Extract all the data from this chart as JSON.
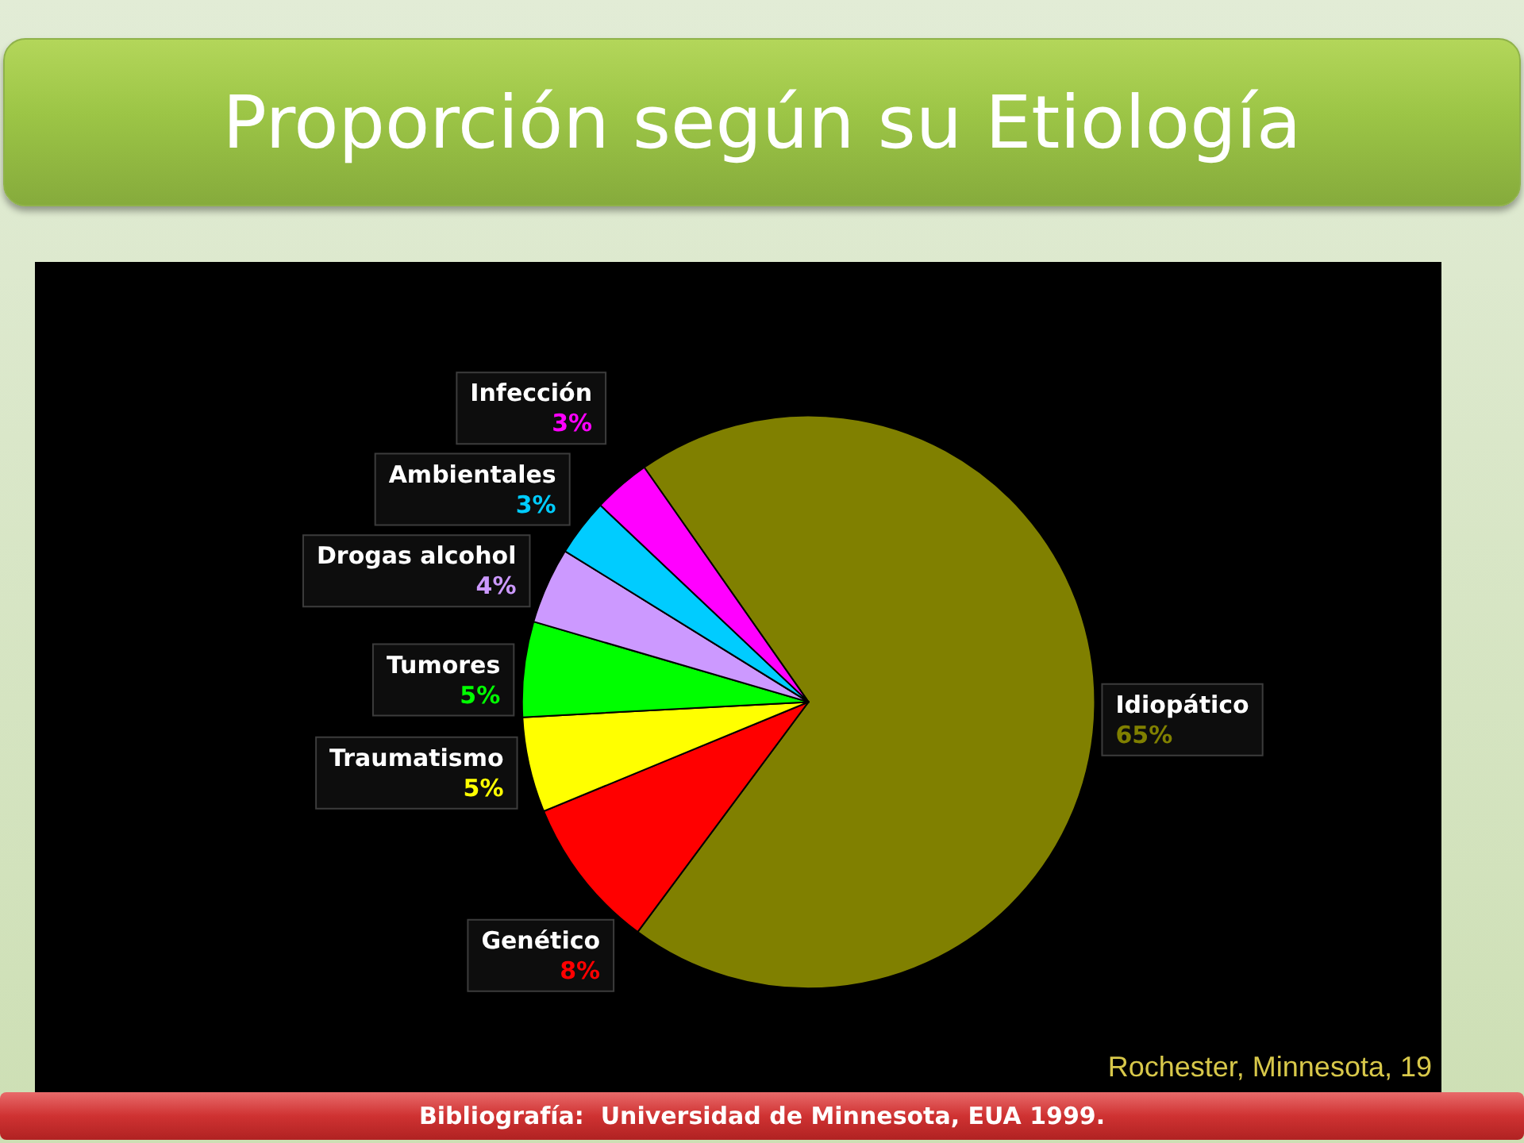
{
  "chart_data": {
    "type": "pie",
    "title": "Proporción según su Etiología",
    "categories": [
      "Idiopático",
      "Genético",
      "Traumatismo",
      "Tumores",
      "Drogas alcohol",
      "Ambientales",
      "Infección"
    ],
    "values": [
      65,
      8,
      5,
      5,
      4,
      3,
      3
    ],
    "value_labels": [
      "65%",
      "8%",
      "5%",
      "5%",
      "4%",
      "3%",
      "3%"
    ],
    "colors": [
      "#808000",
      "#ff0000",
      "#ffff00",
      "#00ff00",
      "#cc99ff",
      "#00ccff",
      "#ff00ff"
    ],
    "annotations": [
      "Rochester, Minnesota, 19",
      "Bibliografía:  Universidad de Minnesota, EUA 1999."
    ]
  }
}
